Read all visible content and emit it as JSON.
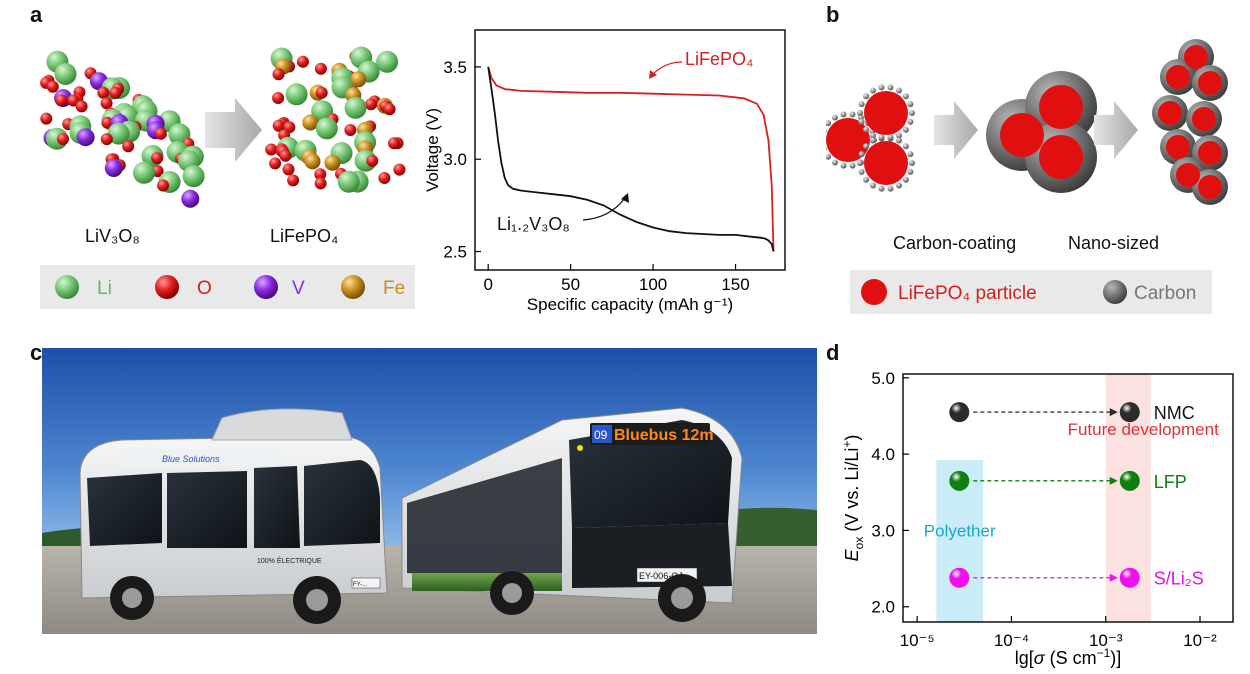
{
  "panels": {
    "a": {
      "letter": "a",
      "struct_left_name": "LiV₃O₈",
      "struct_right_name": "LiFePO₄",
      "legend": [
        {
          "label": "Li",
          "color": "#5fb85f"
        },
        {
          "label": "O",
          "color": "#d42020"
        },
        {
          "label": "V",
          "color": "#8a2be2"
        },
        {
          "label": "Fe",
          "color": "#c8901e"
        }
      ]
    },
    "b": {
      "letter": "b",
      "step1": "Carbon-coating",
      "step2": "Nano-sized",
      "legend_particle": "LiFePO₄ particle",
      "legend_carbon": "Carbon",
      "particle_color": "#e01010",
      "carbon_color": "#666666"
    },
    "c": {
      "letter": "c",
      "bus_banner": "Bluebus 12m",
      "bus_number": "09",
      "front_logo": "bluebus",
      "minibus_brand": "Blue Solutions",
      "minibus_side_text": "100% ÉLECTRIQUE",
      "plate_small": "FY-...",
      "plate_large": "EY-006-QJ"
    },
    "d": {
      "letter": "d"
    }
  },
  "chart_data": [
    {
      "type": "line",
      "xlabel": "Specific capacity (mAh g⁻¹)",
      "ylabel": "Voltage (V)",
      "xlim": [
        -8,
        180
      ],
      "ylim": [
        2.4,
        3.7
      ],
      "xticks": [
        0,
        50,
        100,
        150
      ],
      "yticks": [
        2.5,
        3.0,
        3.5
      ],
      "grid": false,
      "series": [
        {
          "name": "LiFePO₄",
          "color": "#d42020",
          "x": [
            0,
            2,
            5,
            10,
            20,
            40,
            60,
            80,
            100,
            120,
            140,
            155,
            163,
            167,
            170,
            172,
            173
          ],
          "y": [
            3.5,
            3.44,
            3.4,
            3.38,
            3.37,
            3.365,
            3.36,
            3.36,
            3.355,
            3.35,
            3.345,
            3.33,
            3.3,
            3.24,
            3.1,
            2.85,
            2.5
          ]
        },
        {
          "name": "Li₁.₂V₃O₈",
          "color": "#111111",
          "x": [
            0,
            2,
            4,
            6,
            8,
            10,
            12,
            15,
            20,
            30,
            40,
            50,
            60,
            70,
            80,
            90,
            100,
            110,
            120,
            130,
            140,
            150,
            160,
            165,
            168,
            170,
            172,
            173
          ],
          "y": [
            3.5,
            3.38,
            3.25,
            3.1,
            2.98,
            2.9,
            2.86,
            2.84,
            2.83,
            2.82,
            2.81,
            2.8,
            2.78,
            2.75,
            2.7,
            2.66,
            2.63,
            2.61,
            2.6,
            2.595,
            2.59,
            2.59,
            2.58,
            2.575,
            2.57,
            2.56,
            2.54,
            2.5
          ]
        }
      ],
      "annotations": [
        "LiFePO₄",
        "Li₁.₂V₃O₈"
      ]
    },
    {
      "type": "scatter",
      "xlabel": "lg[σ (S cm⁻¹)]",
      "ylabel": "E_ox (V vs. Li/Li⁺)",
      "x_scale": "log",
      "xlim": [
        1e-05,
        0.01
      ],
      "ylim": [
        1.8,
        5.05
      ],
      "xtick_labels": [
        "10⁻⁵",
        "10⁻⁴",
        "10⁻³",
        "10⁻²"
      ],
      "yticks": [
        2.0,
        3.0,
        4.0,
        5.0
      ],
      "grid": false,
      "regions": [
        {
          "label": "Polyether",
          "x_range": [
            1.6e-05,
            5e-05
          ],
          "y_range": [
            1.8,
            3.92
          ],
          "color": "#9fdcef",
          "text_color": "#1aa7c7"
        },
        {
          "label": "Future development",
          "x_range": [
            0.001,
            0.003
          ],
          "y_range": [
            1.8,
            5.05
          ],
          "color": "#f9c9c9",
          "text_color": "#e0303a"
        }
      ],
      "points": [
        {
          "label": "NMC",
          "x_from": 2.8e-05,
          "x_to": 0.0018,
          "y": 4.55,
          "color": "#2b2b2b",
          "label_color": "#111111"
        },
        {
          "label": "LFP",
          "x_from": 2.8e-05,
          "x_to": 0.0018,
          "y": 3.65,
          "color": "#0f7f0f",
          "label_color": "#0f7f0f"
        },
        {
          "label": "S/Li₂S",
          "x_from": 2.8e-05,
          "x_to": 0.0018,
          "y": 2.38,
          "color": "#ee10ee",
          "label_color": "#e010e0"
        }
      ]
    }
  ]
}
